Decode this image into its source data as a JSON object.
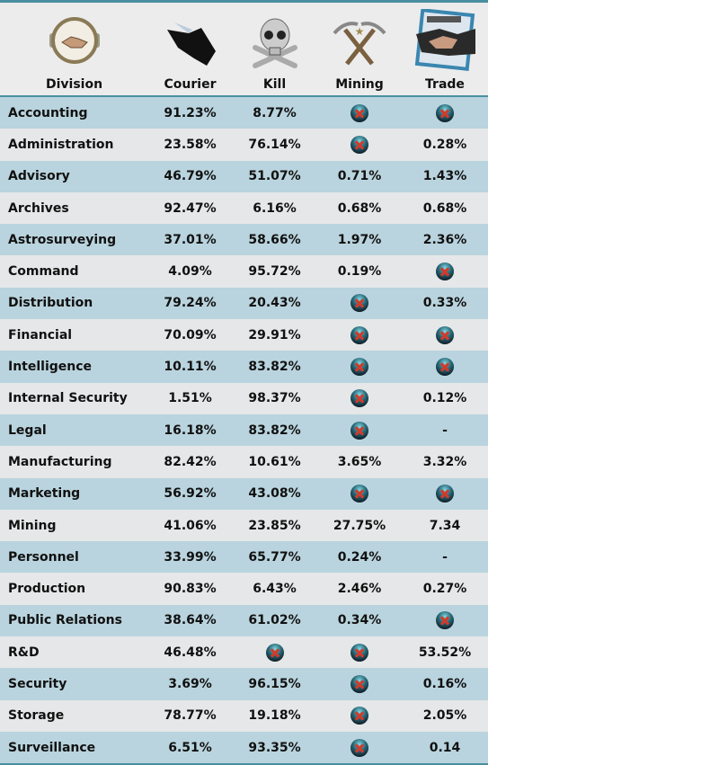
{
  "columns": [
    {
      "label": "Division",
      "icon": "handshake-medallion-icon"
    },
    {
      "label": "Courier",
      "icon": "courier-ship-icon"
    },
    {
      "label": "Kill",
      "icon": "skull-crossbones-icon"
    },
    {
      "label": "Mining",
      "icon": "crossed-pickaxes-icon"
    },
    {
      "label": "Trade",
      "icon": "contract-handshake-icon"
    }
  ],
  "not_available_icon": "x-icon",
  "rows": [
    [
      "Accounting",
      "91.23%",
      "8.77%",
      null,
      null
    ],
    [
      "Administration",
      "23.58%",
      "76.14%",
      null,
      "0.28%"
    ],
    [
      "Advisory",
      "46.79%",
      "51.07%",
      "0.71%",
      "1.43%"
    ],
    [
      "Archives",
      "92.47%",
      "6.16%",
      "0.68%",
      "0.68%"
    ],
    [
      "Astrosurveying",
      "37.01%",
      "58.66%",
      "1.97%",
      "2.36%"
    ],
    [
      "Command",
      "4.09%",
      "95.72%",
      "0.19%",
      null
    ],
    [
      "Distribution",
      "79.24%",
      "20.43%",
      null,
      "0.33%"
    ],
    [
      "Financial",
      "70.09%",
      "29.91%",
      null,
      null
    ],
    [
      "Intelligence",
      "10.11%",
      "83.82%",
      null,
      null
    ],
    [
      "Internal Security",
      "1.51%",
      "98.37%",
      null,
      "0.12%"
    ],
    [
      "Legal",
      "16.18%",
      "83.82%",
      null,
      "-"
    ],
    [
      "Manufacturing",
      "82.42%",
      "10.61%",
      "3.65%",
      "3.32%"
    ],
    [
      "Marketing",
      "56.92%",
      "43.08%",
      null,
      null
    ],
    [
      "Mining",
      "41.06%",
      "23.85%",
      "27.75%",
      "7.34"
    ],
    [
      "Personnel",
      "33.99%",
      "65.77%",
      "0.24%",
      "-"
    ],
    [
      "Production",
      "90.83%",
      "6.43%",
      "2.46%",
      "0.27%"
    ],
    [
      "Public Relations",
      "38.64%",
      "61.02%",
      "0.34%",
      null
    ],
    [
      "R&D",
      "46.48%",
      null,
      null,
      "53.52%"
    ],
    [
      "Security",
      "3.69%",
      "96.15%",
      null,
      "0.16%"
    ],
    [
      "Storage",
      "78.77%",
      "19.18%",
      null,
      "2.05%"
    ],
    [
      "Surveillance",
      "6.51%",
      "93.35%",
      null,
      "0.14"
    ]
  ]
}
